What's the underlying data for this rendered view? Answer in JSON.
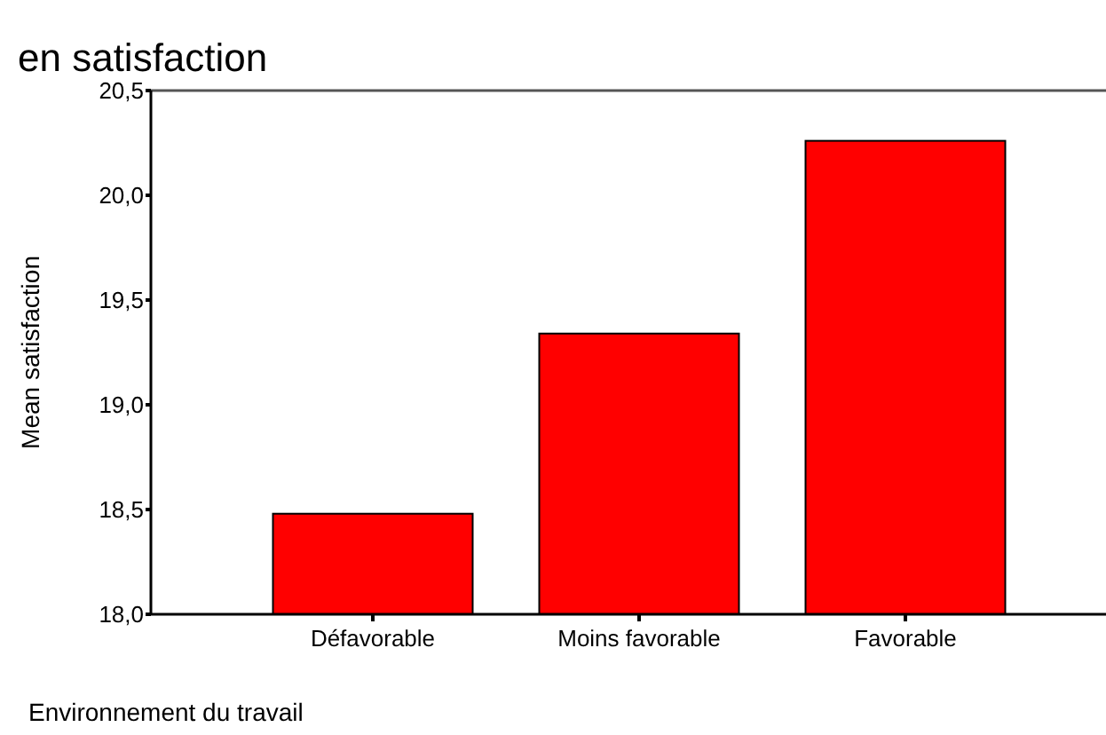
{
  "chart_data": {
    "type": "bar",
    "title": "en satisfaction",
    "xlabel": "Environnement du travail",
    "ylabel": "Mean satisfaction",
    "categories": [
      "Défavorable",
      "Moins favorable",
      "Favorable"
    ],
    "values": [
      18.48,
      19.34,
      20.26
    ],
    "color": "#ff0000",
    "ylim": [
      18,
      20.5
    ],
    "yticks": [
      {
        "value": 18,
        "label": "18,0"
      },
      {
        "value": 18.5,
        "label": "18,5"
      },
      {
        "value": 19,
        "label": "19,0"
      },
      {
        "value": 19.5,
        "label": "19,5"
      },
      {
        "value": 20,
        "label": "20,0"
      },
      {
        "value": 20.5,
        "label": "20,5"
      }
    ],
    "grid": false
  }
}
